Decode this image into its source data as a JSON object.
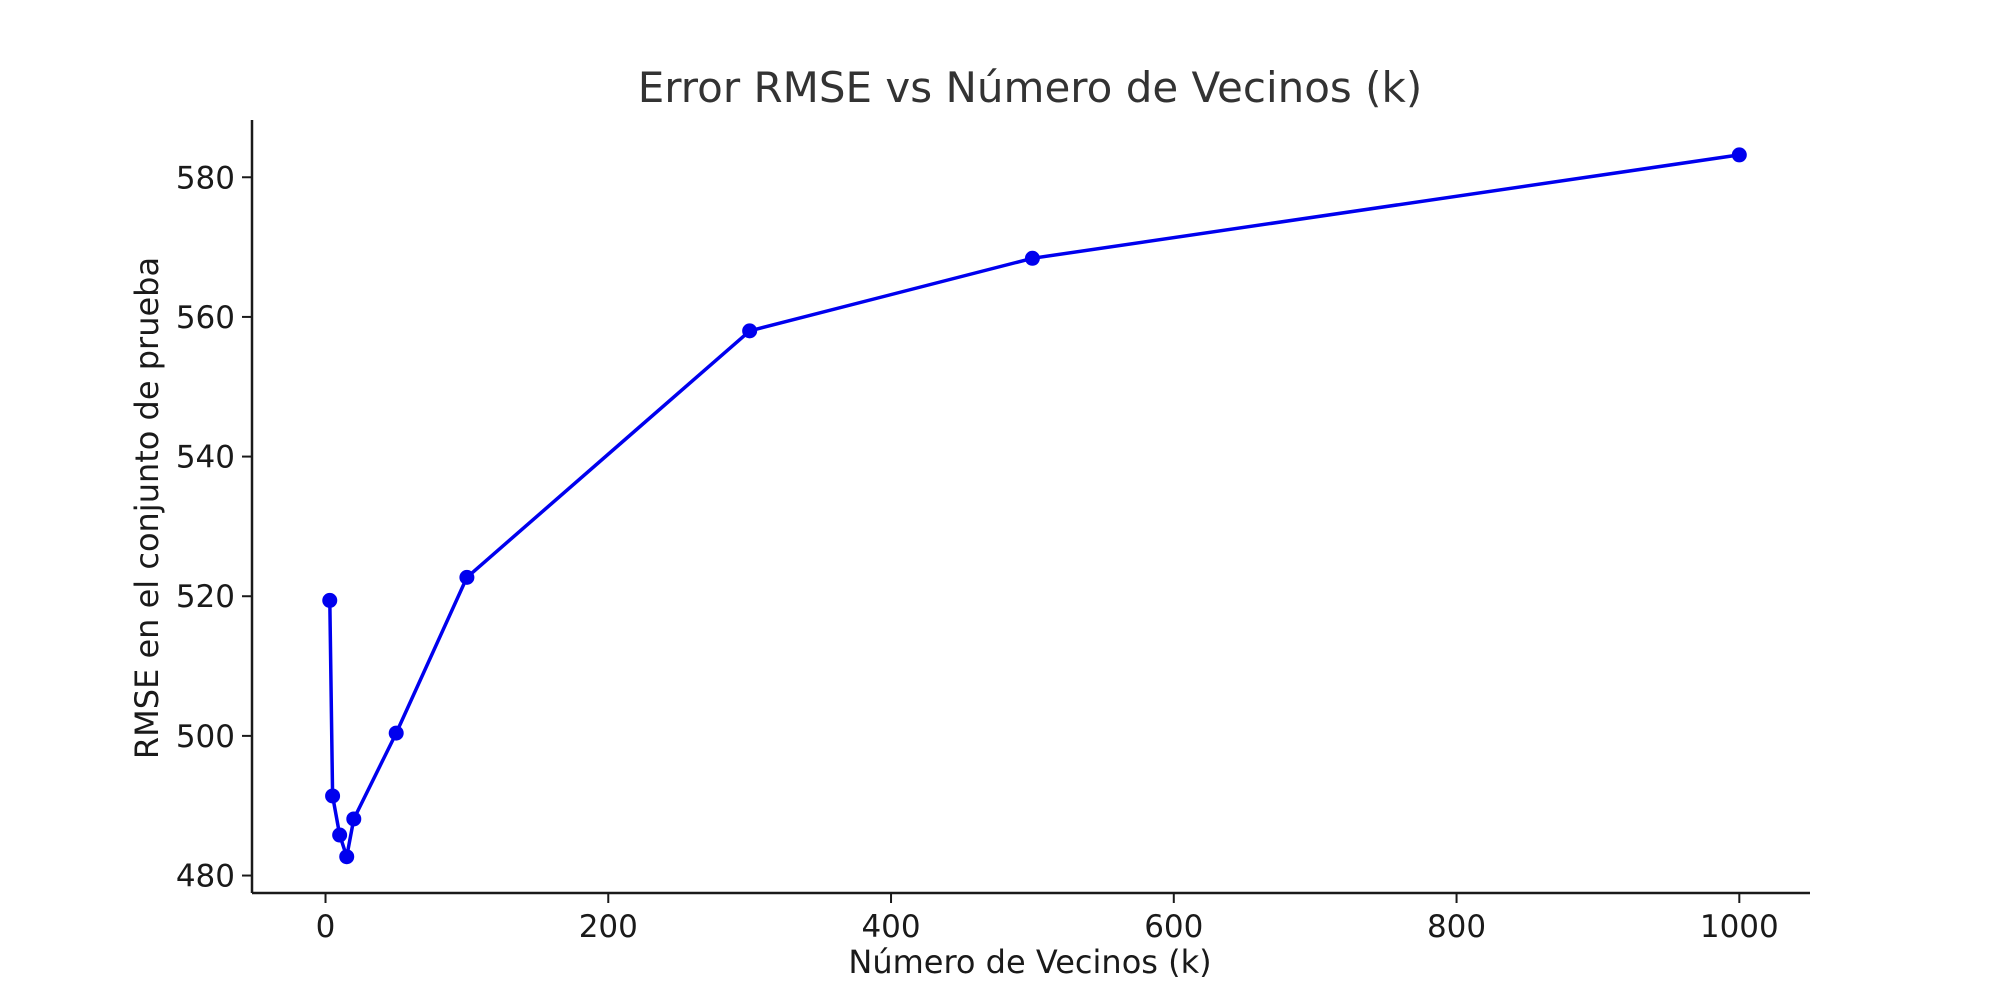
{
  "chart_data": {
    "type": "line",
    "title": "Error RMSE vs Número de Vecinos (k)",
    "xlabel": "Número de Vecinos (k)",
    "ylabel": "RMSE en el conjunto de prueba",
    "xlim": [
      -52,
      1050
    ],
    "ylim": [
      477.5,
      588.2
    ],
    "xticks": [
      0,
      200,
      400,
      600,
      800,
      1000
    ],
    "yticks": [
      480,
      500,
      520,
      540,
      560,
      580
    ],
    "grid": false,
    "legend": "none",
    "series": [
      {
        "color": "#0000ee",
        "x": [
          3,
          5,
          10,
          15,
          20,
          50,
          100,
          300,
          500,
          1000
        ],
        "y": [
          519.4,
          491.4,
          485.8,
          482.7,
          488.1,
          500.4,
          522.7,
          558.0,
          568.4,
          583.2
        ]
      }
    ]
  }
}
